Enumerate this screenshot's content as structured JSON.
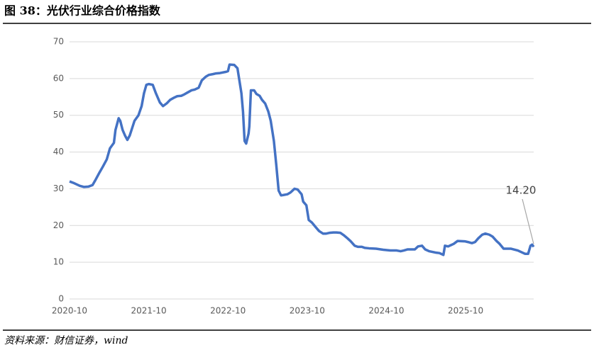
{
  "chart_data": {
    "type": "line",
    "title": "图 38：光伏行业综合价格指数",
    "source": "资料来源：财信证券，wind",
    "annotation": "14.20",
    "x": [
      2020.75,
      2020.81,
      2020.88,
      2020.93,
      2020.99,
      2021.04,
      2021.08,
      2021.13,
      2021.17,
      2021.22,
      2021.26,
      2021.31,
      2021.33,
      2021.37,
      2021.39,
      2021.42,
      2021.45,
      2021.48,
      2021.51,
      2021.54,
      2021.57,
      2021.62,
      2021.66,
      2021.69,
      2021.72,
      2021.75,
      2021.8,
      2021.84,
      2021.89,
      2021.93,
      2021.98,
      2022.02,
      2022.07,
      2022.11,
      2022.16,
      2022.2,
      2022.24,
      2022.29,
      2022.33,
      2022.38,
      2022.42,
      2022.47,
      2022.51,
      2022.56,
      2022.6,
      2022.65,
      2022.72,
      2022.75,
      2022.77,
      2022.83,
      2022.87,
      2022.92,
      2022.94,
      2022.96,
      2022.98,
      2023.01,
      2023.02,
      2023.04,
      2023.08,
      2023.11,
      2023.15,
      2023.18,
      2023.22,
      2023.26,
      2023.29,
      2023.33,
      2023.36,
      2023.39,
      2023.42,
      2023.45,
      2023.5,
      2023.54,
      2023.59,
      2023.63,
      2023.68,
      2023.7,
      2023.74,
      2023.77,
      2023.81,
      2023.86,
      2023.9,
      2023.95,
      2023.99,
      2024.03,
      2024.08,
      2024.12,
      2024.17,
      2024.21,
      2024.26,
      2024.3,
      2024.35,
      2024.39,
      2024.44,
      2024.48,
      2024.53,
      2024.62,
      2024.71,
      2024.8,
      2024.88,
      2024.93,
      2024.97,
      2025.02,
      2025.11,
      2025.15,
      2025.2,
      2025.24,
      2025.29,
      2025.38,
      2025.42,
      2025.47,
      2025.49,
      2025.53,
      2025.6,
      2025.65,
      2025.74,
      2025.78,
      2025.83,
      2025.87,
      2025.91,
      2025.96,
      2026.0,
      2026.05,
      2026.09,
      2026.14,
      2026.18,
      2026.23,
      2026.32,
      2026.41,
      2026.5,
      2026.54,
      2026.57,
      2026.59,
      2026.61
    ],
    "series": [
      {
        "name": "光伏行业综合价格指数",
        "color": "#4472c4",
        "values": [
          32,
          31.5,
          30.8,
          30.5,
          30.6,
          31,
          32.5,
          34.5,
          36,
          38,
          41,
          42.5,
          46,
          49.2,
          48.5,
          46,
          44.5,
          43.3,
          44.5,
          46.5,
          48.5,
          50,
          52.5,
          56,
          58.3,
          58.5,
          58.3,
          56,
          53.5,
          52.5,
          53.3,
          54.2,
          54.8,
          55.2,
          55.3,
          55.7,
          56.2,
          56.8,
          57,
          57.5,
          59.5,
          60.5,
          61,
          61.2,
          61.4,
          61.5,
          61.8,
          62,
          63.8,
          63.7,
          62.8,
          56,
          51,
          43,
          42.3,
          45,
          47,
          56.8,
          56.8,
          55.8,
          55.3,
          54.2,
          53.2,
          51,
          48.5,
          43,
          36.5,
          29.5,
          28.2,
          28.3,
          28.5,
          29,
          30,
          29.8,
          28.5,
          26.5,
          25.5,
          21.5,
          20.8,
          19.5,
          18.5,
          17.8,
          17.8,
          18,
          18.1,
          18.1,
          18,
          17.4,
          16.5,
          15.7,
          14.5,
          14.2,
          14.2,
          13.9,
          13.8,
          13.7,
          13.4,
          13.2,
          13.2,
          13,
          13.2,
          13.5,
          13.5,
          14.3,
          14.5,
          13.5,
          13,
          12.6,
          12.5,
          12,
          14.5,
          14.3,
          15,
          15.8,
          15.7,
          15.5,
          15.2,
          15.5,
          16.5,
          17.5,
          17.8,
          17.5,
          17,
          15.8,
          15,
          13.7,
          13.7,
          13.2,
          12.3,
          12.3,
          14.5,
          14.8,
          14.2
        ]
      }
    ],
    "xlim": [
      2020.75,
      2026.61
    ],
    "xticks": [
      {
        "value": 2020.75,
        "label": "2020-10"
      },
      {
        "value": 2021.75,
        "label": "2021-10"
      },
      {
        "value": 2022.75,
        "label": "2022-10"
      },
      {
        "value": 2023.75,
        "label": "2023-10"
      },
      {
        "value": 2024.75,
        "label": "2024-10"
      },
      {
        "value": 2025.75,
        "label": "2025-10"
      }
    ],
    "ylim": [
      0,
      70
    ],
    "yticks": [
      0,
      10,
      20,
      30,
      40,
      50,
      60,
      70
    ],
    "grid": true
  }
}
